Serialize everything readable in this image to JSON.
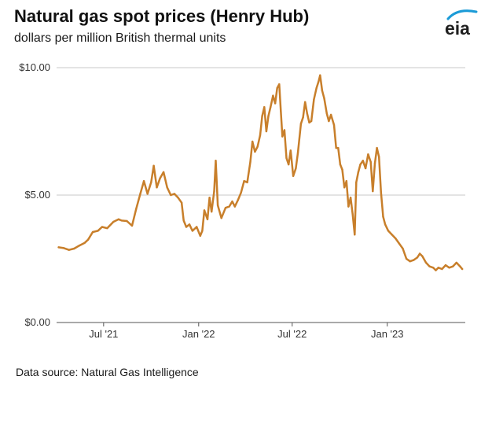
{
  "title": "Natural gas spot prices (Henry Hub)",
  "subtitle": "dollars per million British thermal units",
  "logo_text": "eia",
  "source": "Data source: Natural Gas Intelligence",
  "colors": {
    "line": "#C87F2B",
    "grid": "#c8c8c8",
    "axis": "#555555",
    "logo_arc": "#1b9bd7"
  },
  "chart_data": {
    "type": "line",
    "title": "Natural gas spot prices (Henry Hub)",
    "ylabel": "dollars per million British thermal units",
    "xlabel": "",
    "ylim": [
      0,
      10
    ],
    "xlim": [
      "2021-04-01",
      "2023-06-01"
    ],
    "y_ticks": [
      {
        "value": 0,
        "label": "$0.00"
      },
      {
        "value": 5,
        "label": "$5.00"
      },
      {
        "value": 10,
        "label": "$10.00"
      }
    ],
    "x_ticks": [
      {
        "date": "2021-07-01",
        "label": "Jul '21"
      },
      {
        "date": "2022-01-01",
        "label": "Jan '22"
      },
      {
        "date": "2022-07-01",
        "label": "Jul '22"
      },
      {
        "date": "2023-01-01",
        "label": "Jan '23"
      }
    ],
    "grid": true,
    "series": [
      {
        "name": "",
        "points": [
          [
            "2021-04-05",
            2.95
          ],
          [
            "2021-04-15",
            2.92
          ],
          [
            "2021-04-25",
            2.85
          ],
          [
            "2021-05-05",
            2.9
          ],
          [
            "2021-05-15",
            3.02
          ],
          [
            "2021-05-25",
            3.12
          ],
          [
            "2021-06-01",
            3.25
          ],
          [
            "2021-06-10",
            3.55
          ],
          [
            "2021-06-20",
            3.6
          ],
          [
            "2021-06-28",
            3.75
          ],
          [
            "2021-07-08",
            3.7
          ],
          [
            "2021-07-20",
            3.95
          ],
          [
            "2021-07-30",
            4.05
          ],
          [
            "2021-08-05",
            4.0
          ],
          [
            "2021-08-15",
            3.98
          ],
          [
            "2021-08-25",
            3.8
          ],
          [
            "2021-09-02",
            4.45
          ],
          [
            "2021-09-10",
            5.05
          ],
          [
            "2021-09-17",
            5.55
          ],
          [
            "2021-09-24",
            5.05
          ],
          [
            "2021-10-01",
            5.5
          ],
          [
            "2021-10-06",
            6.15
          ],
          [
            "2021-10-12",
            5.3
          ],
          [
            "2021-10-18",
            5.65
          ],
          [
            "2021-10-25",
            5.9
          ],
          [
            "2021-11-01",
            5.3
          ],
          [
            "2021-11-08",
            5.0
          ],
          [
            "2021-11-15",
            5.05
          ],
          [
            "2021-11-22",
            4.9
          ],
          [
            "2021-11-29",
            4.7
          ],
          [
            "2021-12-03",
            4.0
          ],
          [
            "2021-12-08",
            3.75
          ],
          [
            "2021-12-14",
            3.85
          ],
          [
            "2021-12-20",
            3.6
          ],
          [
            "2021-12-28",
            3.75
          ],
          [
            "2022-01-04",
            3.4
          ],
          [
            "2022-01-08",
            3.6
          ],
          [
            "2022-01-12",
            4.4
          ],
          [
            "2022-01-18",
            4.05
          ],
          [
            "2022-01-22",
            4.9
          ],
          [
            "2022-01-26",
            4.35
          ],
          [
            "2022-01-31",
            5.15
          ],
          [
            "2022-02-03",
            6.35
          ],
          [
            "2022-02-07",
            4.6
          ],
          [
            "2022-02-14",
            4.1
          ],
          [
            "2022-02-22",
            4.5
          ],
          [
            "2022-03-01",
            4.55
          ],
          [
            "2022-03-07",
            4.75
          ],
          [
            "2022-03-12",
            4.55
          ],
          [
            "2022-03-18",
            4.8
          ],
          [
            "2022-03-24",
            5.1
          ],
          [
            "2022-03-30",
            5.55
          ],
          [
            "2022-04-05",
            5.5
          ],
          [
            "2022-04-11",
            6.3
          ],
          [
            "2022-04-15",
            7.1
          ],
          [
            "2022-04-20",
            6.7
          ],
          [
            "2022-04-25",
            6.9
          ],
          [
            "2022-04-30",
            7.35
          ],
          [
            "2022-05-04",
            8.1
          ],
          [
            "2022-05-08",
            8.45
          ],
          [
            "2022-05-12",
            7.5
          ],
          [
            "2022-05-16",
            8.1
          ],
          [
            "2022-05-20",
            8.45
          ],
          [
            "2022-05-25",
            8.9
          ],
          [
            "2022-05-29",
            8.6
          ],
          [
            "2022-06-02",
            9.2
          ],
          [
            "2022-06-06",
            9.35
          ],
          [
            "2022-06-09",
            8.3
          ],
          [
            "2022-06-12",
            7.3
          ],
          [
            "2022-06-16",
            7.55
          ],
          [
            "2022-06-20",
            6.45
          ],
          [
            "2022-06-24",
            6.2
          ],
          [
            "2022-06-28",
            6.75
          ],
          [
            "2022-07-03",
            5.75
          ],
          [
            "2022-07-08",
            6.05
          ],
          [
            "2022-07-12",
            6.65
          ],
          [
            "2022-07-18",
            7.8
          ],
          [
            "2022-07-22",
            8.05
          ],
          [
            "2022-07-26",
            8.65
          ],
          [
            "2022-07-30",
            8.2
          ],
          [
            "2022-08-03",
            7.85
          ],
          [
            "2022-08-07",
            7.9
          ],
          [
            "2022-08-12",
            8.75
          ],
          [
            "2022-08-17",
            9.2
          ],
          [
            "2022-08-21",
            9.45
          ],
          [
            "2022-08-24",
            9.7
          ],
          [
            "2022-08-28",
            9.1
          ],
          [
            "2022-09-01",
            8.8
          ],
          [
            "2022-09-06",
            8.2
          ],
          [
            "2022-09-10",
            7.9
          ],
          [
            "2022-09-14",
            8.15
          ],
          [
            "2022-09-20",
            7.75
          ],
          [
            "2022-09-24",
            6.85
          ],
          [
            "2022-09-28",
            6.85
          ],
          [
            "2022-10-02",
            6.2
          ],
          [
            "2022-10-06",
            6.0
          ],
          [
            "2022-10-10",
            5.3
          ],
          [
            "2022-10-14",
            5.55
          ],
          [
            "2022-10-18",
            4.55
          ],
          [
            "2022-10-22",
            4.9
          ],
          [
            "2022-10-26",
            4.25
          ],
          [
            "2022-10-30",
            3.45
          ],
          [
            "2022-11-02",
            5.5
          ],
          [
            "2022-11-06",
            5.9
          ],
          [
            "2022-11-10",
            6.2
          ],
          [
            "2022-11-15",
            6.35
          ],
          [
            "2022-11-20",
            6.05
          ],
          [
            "2022-11-25",
            6.6
          ],
          [
            "2022-11-30",
            6.3
          ],
          [
            "2022-12-04",
            5.15
          ],
          [
            "2022-12-08",
            6.25
          ],
          [
            "2022-12-12",
            6.85
          ],
          [
            "2022-12-16",
            6.5
          ],
          [
            "2022-12-20",
            5.1
          ],
          [
            "2022-12-24",
            4.15
          ],
          [
            "2022-12-28",
            3.85
          ],
          [
            "2023-01-03",
            3.6
          ],
          [
            "2023-01-10",
            3.45
          ],
          [
            "2023-01-17",
            3.3
          ],
          [
            "2023-01-24",
            3.1
          ],
          [
            "2023-01-31",
            2.9
          ],
          [
            "2023-02-07",
            2.5
          ],
          [
            "2023-02-14",
            2.4
          ],
          [
            "2023-02-21",
            2.45
          ],
          [
            "2023-02-28",
            2.55
          ],
          [
            "2023-03-05",
            2.7
          ],
          [
            "2023-03-10",
            2.6
          ],
          [
            "2023-03-17",
            2.35
          ],
          [
            "2023-03-24",
            2.2
          ],
          [
            "2023-03-31",
            2.15
          ],
          [
            "2023-04-05",
            2.05
          ],
          [
            "2023-04-10",
            2.15
          ],
          [
            "2023-04-17",
            2.1
          ],
          [
            "2023-04-24",
            2.25
          ],
          [
            "2023-05-01",
            2.15
          ],
          [
            "2023-05-08",
            2.2
          ],
          [
            "2023-05-15",
            2.35
          ],
          [
            "2023-05-22",
            2.2
          ],
          [
            "2023-05-26",
            2.1
          ]
        ]
      }
    ]
  }
}
